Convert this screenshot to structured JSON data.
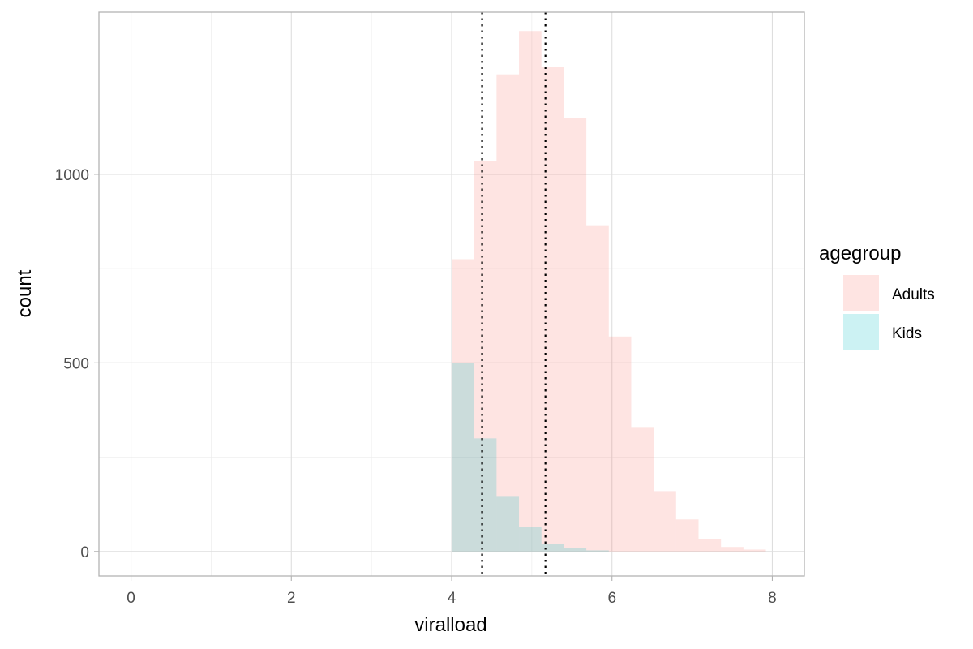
{
  "chart_data": {
    "type": "bar",
    "subtype": "overlaid-histogram",
    "xlabel": "viralload",
    "ylabel": "count",
    "xlim": [
      -0.4,
      8.4
    ],
    "ylim": [
      -65,
      1430
    ],
    "x_ticks": [
      0,
      2,
      4,
      6,
      8
    ],
    "y_ticks": [
      0,
      500,
      1000
    ],
    "x_tick_labels": [
      "0",
      "2",
      "4",
      "6",
      "8"
    ],
    "y_tick_labels": [
      "0",
      "500",
      "1000"
    ],
    "grid": true,
    "bin_width": 0.28,
    "bin_starts": [
      4.0,
      4.28,
      4.56,
      4.84,
      5.12,
      5.4,
      5.68,
      5.96,
      6.24,
      6.52,
      6.8,
      7.08,
      7.36,
      7.64
    ],
    "series": [
      {
        "name": "Adults",
        "color": "#F8766D",
        "values": [
          775,
          1035,
          1265,
          1380,
          1285,
          1150,
          865,
          570,
          330,
          160,
          85,
          32,
          12,
          5
        ]
      },
      {
        "name": "Kids",
        "color": "#00BFC4",
        "values": [
          500,
          300,
          145,
          65,
          20,
          10,
          3,
          0,
          0,
          0,
          0,
          0,
          0,
          0
        ]
      }
    ],
    "reference_lines": [
      {
        "x": 4.38,
        "style": "dotted",
        "color": "#000000"
      },
      {
        "x": 5.17,
        "style": "dotted",
        "color": "#000000"
      }
    ],
    "legend": {
      "title": "agegroup",
      "position": "right",
      "entries": [
        "Adults",
        "Kids"
      ]
    }
  }
}
